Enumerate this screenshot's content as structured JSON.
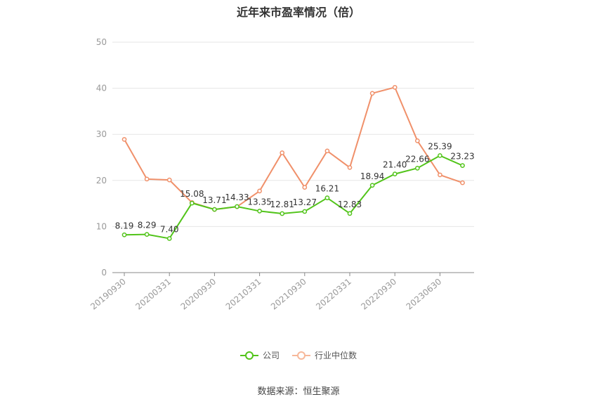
{
  "chart_data": {
    "type": "line",
    "title": "近年来市盈率情况（倍）",
    "xlabel": "",
    "ylabel": "",
    "ylim": [
      0,
      50
    ],
    "yticks": [
      0,
      10,
      20,
      30,
      40,
      50
    ],
    "grid": true,
    "legend_position": "bottom",
    "x": [
      "20190930",
      "20191231",
      "20200331",
      "20200630",
      "20200930",
      "20201231",
      "20210331",
      "20210630",
      "20210930",
      "20211231",
      "20220331",
      "20220630",
      "20220930",
      "20221231",
      "20230630",
      "20230930"
    ],
    "xtick_labels": [
      "20190930",
      "20200331",
      "20200930",
      "20210331",
      "20210930",
      "20220331",
      "20220930",
      "20230630"
    ],
    "series": [
      {
        "name": "公司",
        "color": "#52c41a",
        "values": [
          8.19,
          8.29,
          7.4,
          15.08,
          13.71,
          14.33,
          13.35,
          12.81,
          13.27,
          16.21,
          12.83,
          18.94,
          21.4,
          22.66,
          25.39,
          23.23
        ],
        "labels": [
          "8.19",
          "8.29",
          "7.40",
          "15.08",
          "13.71",
          "14.33",
          "13.35",
          "12.81",
          "13.27",
          "16.21",
          "12.83",
          "18.94",
          "21.40",
          "22.66",
          "25.39",
          "23.23"
        ]
      },
      {
        "name": "行业中位数",
        "color": "#f0906a",
        "values": [
          28.9,
          20.3,
          20.1,
          15.2,
          13.7,
          14.3,
          17.7,
          26.0,
          18.5,
          26.4,
          22.8,
          38.9,
          40.2,
          28.6,
          21.2,
          19.5
        ]
      }
    ]
  },
  "source": "数据来源：恒生聚源"
}
